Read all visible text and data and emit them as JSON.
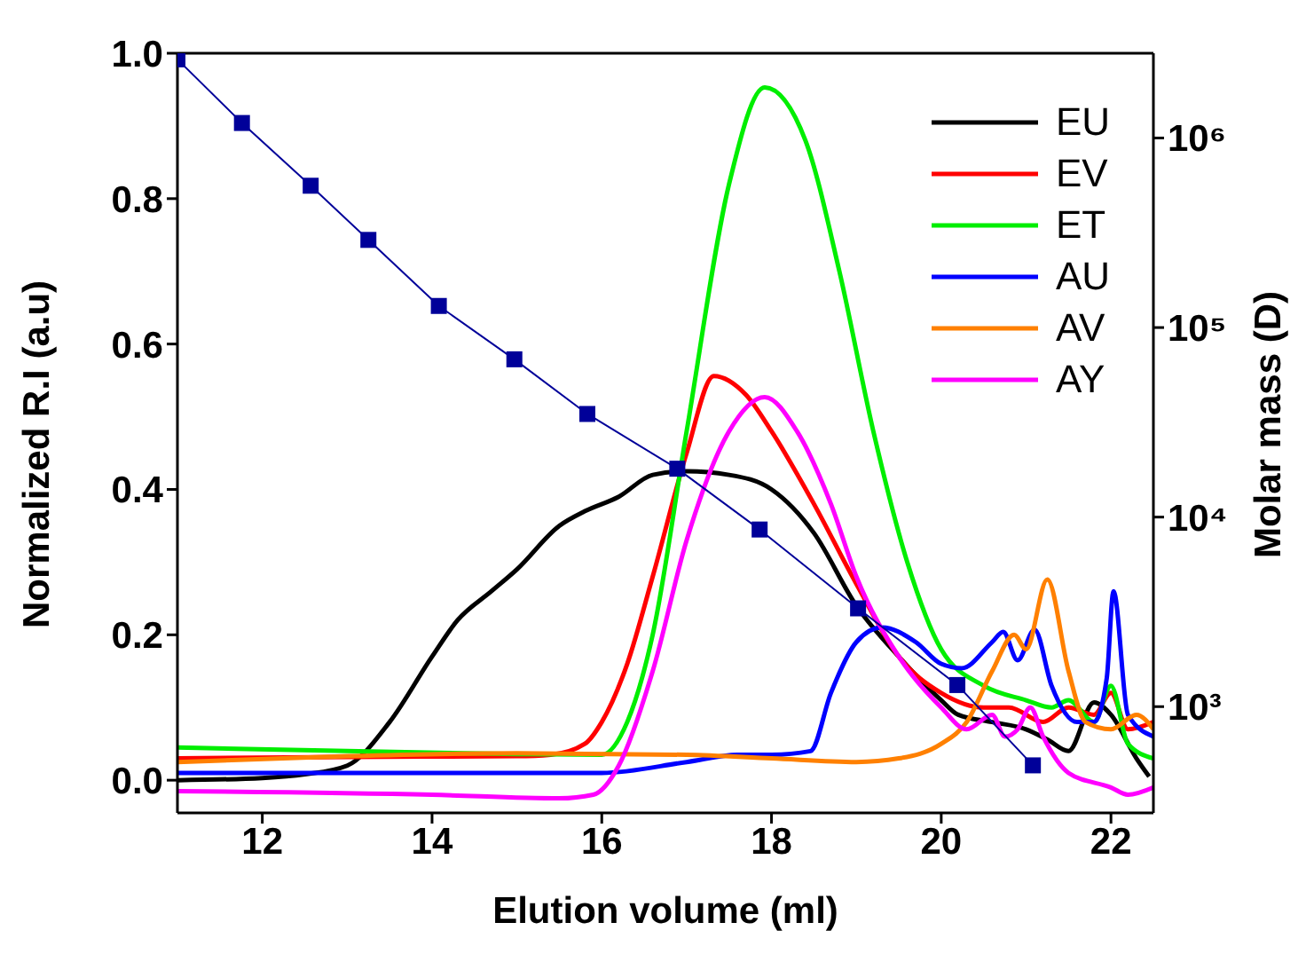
{
  "chart_data": {
    "type": "line",
    "xlabel": "Elution volume (ml)",
    "ylabel": "Normalized R.I (a.u)",
    "y2label": "Molar mass (D)",
    "xlim": [
      11,
      22.5
    ],
    "xticks": [
      12,
      14,
      16,
      18,
      20,
      22
    ],
    "ylim": [
      -0.045,
      1.0
    ],
    "yticks": [
      {
        "value": 0,
        "label": "0.0"
      },
      {
        "value": 0.2,
        "label": "0.2"
      },
      {
        "value": 0.4,
        "label": "0.4"
      },
      {
        "value": 0.6,
        "label": "0.6"
      },
      {
        "value": 0.8,
        "label": "0.8"
      },
      {
        "value": 1.0,
        "label": "1.0"
      }
    ],
    "y2lim": [
      275,
      2800000
    ],
    "y2ticks": [
      {
        "value": 1000,
        "label": "10³"
      },
      {
        "value": 10000,
        "label": "10⁴"
      },
      {
        "value": 100000,
        "label": "10⁵"
      },
      {
        "value": 1000000,
        "label": "10⁶"
      }
    ],
    "log": "y2",
    "legend": "top right",
    "marker": "none",
    "line_style": "solid",
    "series": [
      {
        "name": "EU",
        "color": "#000000",
        "x": [
          11,
          12,
          12.5,
          13,
          13.5,
          14,
          14.3,
          14.7,
          15,
          15.5,
          15.8,
          16.2,
          16.6,
          17,
          17.5,
          18,
          18.5,
          19,
          19.5,
          20,
          20.2,
          20.6,
          21,
          21.25,
          21.5,
          21.8,
          22,
          22.3,
          22.45
        ],
        "values": [
          0.0,
          0.003,
          0.008,
          0.02,
          0.08,
          0.17,
          0.22,
          0.26,
          0.29,
          0.35,
          0.37,
          0.39,
          0.42,
          0.425,
          0.42,
          0.4,
          0.34,
          0.24,
          0.17,
          0.11,
          0.09,
          0.08,
          0.07,
          0.056,
          0.04,
          0.107,
          0.09,
          0.03,
          0.005
        ]
      },
      {
        "name": "EV",
        "color": "#ff0000",
        "x": [
          11,
          13,
          15,
          15.4,
          15.8,
          16,
          16.3,
          16.6,
          17,
          17.32,
          17.7,
          18,
          18.5,
          19,
          19.5,
          20,
          20.5,
          20.8,
          21.2,
          21.5,
          21.8,
          22,
          22.2,
          22.5
        ],
        "values": [
          0.03,
          0.032,
          0.033,
          0.035,
          0.05,
          0.08,
          0.16,
          0.28,
          0.45,
          0.556,
          0.53,
          0.48,
          0.38,
          0.27,
          0.17,
          0.12,
          0.1,
          0.1,
          0.08,
          0.1,
          0.09,
          0.12,
          0.07,
          0.08
        ]
      },
      {
        "name": "ET",
        "color": "#00ee00",
        "x": [
          11,
          13,
          15,
          16,
          16.3,
          16.6,
          17,
          17.5,
          17.92,
          18.4,
          18.8,
          19.2,
          19.6,
          20,
          20.5,
          21,
          21.3,
          21.5,
          21.8,
          22,
          22.2,
          22.5
        ],
        "values": [
          0.045,
          0.04,
          0.036,
          0.035,
          0.08,
          0.2,
          0.48,
          0.82,
          0.953,
          0.88,
          0.7,
          0.48,
          0.3,
          0.18,
          0.13,
          0.11,
          0.1,
          0.11,
          0.08,
          0.13,
          0.05,
          0.03
        ]
      },
      {
        "name": "AU",
        "color": "#0000ff",
        "x": [
          11,
          13,
          15,
          16,
          17,
          17.6,
          18,
          18.46,
          18.7,
          19,
          19.3,
          19.7,
          20,
          20.24,
          20.6,
          20.73,
          20.9,
          21.1,
          21.3,
          21.6,
          21.8,
          21.95,
          22.03,
          22.2,
          22.5
        ],
        "values": [
          0.01,
          0.01,
          0.01,
          0.01,
          0.025,
          0.035,
          0.035,
          0.04,
          0.12,
          0.19,
          0.21,
          0.19,
          0.16,
          0.154,
          0.19,
          0.204,
          0.165,
          0.207,
          0.13,
          0.08,
          0.08,
          0.14,
          0.26,
          0.09,
          0.06
        ]
      },
      {
        "name": "AV",
        "color": "#ff8000",
        "x": [
          11,
          13,
          15,
          17,
          18,
          19,
          19.5,
          20,
          20.3,
          20.6,
          20.86,
          21.0,
          21.25,
          21.5,
          21.7,
          22,
          22.3,
          22.5
        ],
        "values": [
          0.025,
          0.033,
          0.037,
          0.035,
          0.03,
          0.025,
          0.03,
          0.05,
          0.08,
          0.15,
          0.2,
          0.18,
          0.276,
          0.15,
          0.08,
          0.07,
          0.09,
          0.07
        ]
      },
      {
        "name": "AY",
        "color": "#ff00ff",
        "x": [
          11,
          14,
          15.5,
          15.9,
          16.2,
          16.6,
          17,
          17.5,
          17.92,
          18.3,
          18.7,
          19,
          19.5,
          20,
          20.3,
          20.6,
          20.75,
          20.9,
          21.05,
          21.2,
          21.5,
          22,
          22.2,
          22.5
        ],
        "values": [
          -0.015,
          -0.02,
          -0.025,
          -0.02,
          0.02,
          0.15,
          0.33,
          0.48,
          0.527,
          0.48,
          0.38,
          0.28,
          0.17,
          0.1,
          0.07,
          0.09,
          0.06,
          0.07,
          0.1,
          0.06,
          0.01,
          -0.01,
          -0.02,
          -0.01
        ]
      },
      {
        "color": "#000099",
        "axis": "y2",
        "marker": "square",
        "x": [
          11.0,
          11.76,
          12.57,
          13.25,
          14.08,
          14.97,
          15.83,
          16.89,
          17.86,
          19.02,
          20.19,
          21.08
        ],
        "values": [
          2600000,
          1200000,
          560000,
          290000,
          130000,
          68000,
          35000,
          18000,
          8600,
          3300,
          1300,
          490
        ]
      }
    ]
  }
}
